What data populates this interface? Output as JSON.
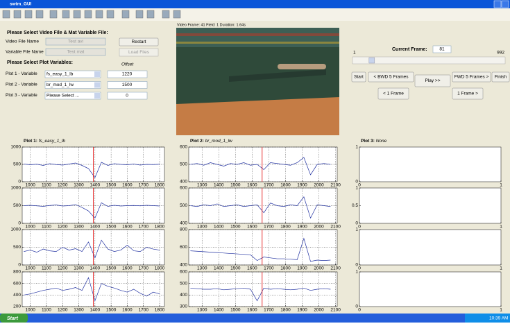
{
  "window": {
    "title": "swim_GUI"
  },
  "left_panel": {
    "heading1": "Please Select Video File & Mat Variable File:",
    "video_label": "Video File Name",
    "video_field": "Test avi",
    "restart": "Restart",
    "variable_label": "Variable File Name",
    "variable_field": "Test mat",
    "load_files": "Load Files",
    "heading2": "Please Select Plot Variables:",
    "offset_heading": "Offset",
    "rows": [
      {
        "label": "Plot 1 - Variable",
        "select": "fs_easy_1_lb",
        "offset": 1220
      },
      {
        "label": "Plot 2 - Variable",
        "select": "br_mod_1_lw",
        "offset": 1500
      },
      {
        "label": "Plot 3 - Variable",
        "select": "Please Select ...",
        "offset": 0
      }
    ]
  },
  "video": {
    "info": "Video Frame: 41  Field: 1  Duration: 1.64s"
  },
  "frame_panel": {
    "label": "Current Frame:",
    "current": 81,
    "min": 1,
    "max": 992,
    "start": "Start",
    "bwd5": "< BWD 5 Frames",
    "play": "Play >>",
    "fwd5": "FWD 5 Frames >",
    "finish": "Finish",
    "bwd1": "< 1 Frame",
    "fwd1": "1 Frame >"
  },
  "plots": [
    {
      "prefix": "Plot 1:",
      "variable": "fs_easy_1_lb",
      "marker_x": 1390,
      "xlim": [
        950,
        1830
      ],
      "xticks": [
        1000,
        1100,
        1200,
        1300,
        1400,
        1500,
        1600,
        1700,
        1800
      ],
      "x": [
        960,
        1000,
        1040,
        1080,
        1120,
        1160,
        1200,
        1240,
        1280,
        1320,
        1360,
        1400,
        1440,
        1480,
        1520,
        1560,
        1600,
        1640,
        1680,
        1720,
        1760,
        1800
      ],
      "axes": [
        {
          "ylim": [
            0,
            1000
          ],
          "yticks": [
            0,
            500,
            1000
          ],
          "values": [
            510,
            490,
            505,
            470,
            520,
            495,
            480,
            510,
            540,
            470,
            380,
            120,
            560,
            470,
            520,
            500,
            490,
            510,
            480,
            500,
            495,
            505
          ]
        },
        {
          "ylim": [
            0,
            1000
          ],
          "yticks": [
            0,
            500,
            1000
          ],
          "values": [
            500,
            510,
            495,
            480,
            505,
            520,
            490,
            500,
            530,
            450,
            350,
            150,
            580,
            480,
            510,
            490,
            500,
            505,
            495,
            510,
            500,
            490
          ]
        },
        {
          "ylim": [
            0,
            1000
          ],
          "yticks": [
            0,
            500,
            1000
          ],
          "values": [
            380,
            420,
            360,
            450,
            400,
            380,
            500,
            420,
            460,
            380,
            650,
            200,
            700,
            450,
            380,
            420,
            560,
            400,
            380,
            500,
            450,
            420
          ]
        },
        {
          "ylim": [
            200,
            800
          ],
          "yticks": [
            200,
            400,
            600,
            800
          ],
          "values": [
            400,
            420,
            450,
            480,
            500,
            520,
            480,
            500,
            530,
            480,
            700,
            300,
            600,
            550,
            520,
            480,
            450,
            500,
            430,
            380,
            450,
            420
          ]
        }
      ]
    },
    {
      "prefix": "Plot 2:",
      "variable": "br_mod_1_lw",
      "marker_x": 1660,
      "xlim": [
        1220,
        2110
      ],
      "xticks": [
        1300,
        1400,
        1500,
        1600,
        1700,
        1800,
        1900,
        2000,
        2100
      ],
      "x": [
        1230,
        1270,
        1310,
        1350,
        1390,
        1430,
        1470,
        1510,
        1550,
        1590,
        1630,
        1670,
        1710,
        1750,
        1790,
        1830,
        1870,
        1910,
        1950,
        1990,
        2030,
        2070
      ],
      "axes": [
        {
          "ylim": [
            400,
            600
          ],
          "yticks": [
            400,
            500,
            600
          ],
          "values": [
            500,
            505,
            495,
            510,
            500,
            490,
            505,
            500,
            510,
            495,
            500,
            470,
            510,
            505,
            500,
            495,
            510,
            540,
            440,
            500,
            505,
            500
          ]
        },
        {
          "ylim": [
            400,
            600
          ],
          "yticks": [
            400,
            500,
            600
          ],
          "values": [
            500,
            495,
            505,
            500,
            510,
            495,
            500,
            505,
            495,
            500,
            505,
            460,
            515,
            500,
            495,
            505,
            500,
            550,
            430,
            505,
            500,
            495
          ]
        },
        {
          "ylim": [
            400,
            800
          ],
          "yticks": [
            400,
            600,
            800
          ],
          "values": [
            560,
            555,
            550,
            545,
            540,
            535,
            530,
            525,
            520,
            515,
            450,
            490,
            480,
            470,
            470,
            465,
            460,
            700,
            440,
            455,
            450,
            455
          ]
        },
        {
          "ylim": [
            300,
            600
          ],
          "yticks": [
            300,
            400,
            500,
            600
          ],
          "values": [
            460,
            455,
            450,
            450,
            455,
            445,
            450,
            455,
            460,
            450,
            350,
            460,
            450,
            455,
            450,
            445,
            450,
            460,
            440,
            450,
            455,
            450
          ]
        }
      ]
    },
    {
      "prefix": "Plot 3:",
      "variable": "None",
      "xlim": [
        0,
        1
      ],
      "xticks": [
        0,
        1
      ],
      "axes": [
        {
          "ylim": [
            0,
            1
          ],
          "yticks": [
            0,
            1
          ]
        },
        {
          "ylim": [
            0,
            1
          ],
          "yticks": [
            0,
            0.5,
            1
          ]
        },
        {
          "ylim": [
            0,
            1
          ],
          "yticks": [
            0,
            1
          ]
        },
        {
          "ylim": [
            0,
            1
          ],
          "yticks": [
            0,
            1
          ]
        }
      ]
    }
  ],
  "taskbar": {
    "start": "Start",
    "items": [
      "Swim_GUI",
      "MATLAB  7.8.0 (R2009a)",
      "Editor - C:\\CWMA\\Swim_...",
      "swim_GUI.fig",
      "swim_GUI",
      "Update.doc [Compatibilit..."
    ],
    "clock": "10:39 AM"
  }
}
